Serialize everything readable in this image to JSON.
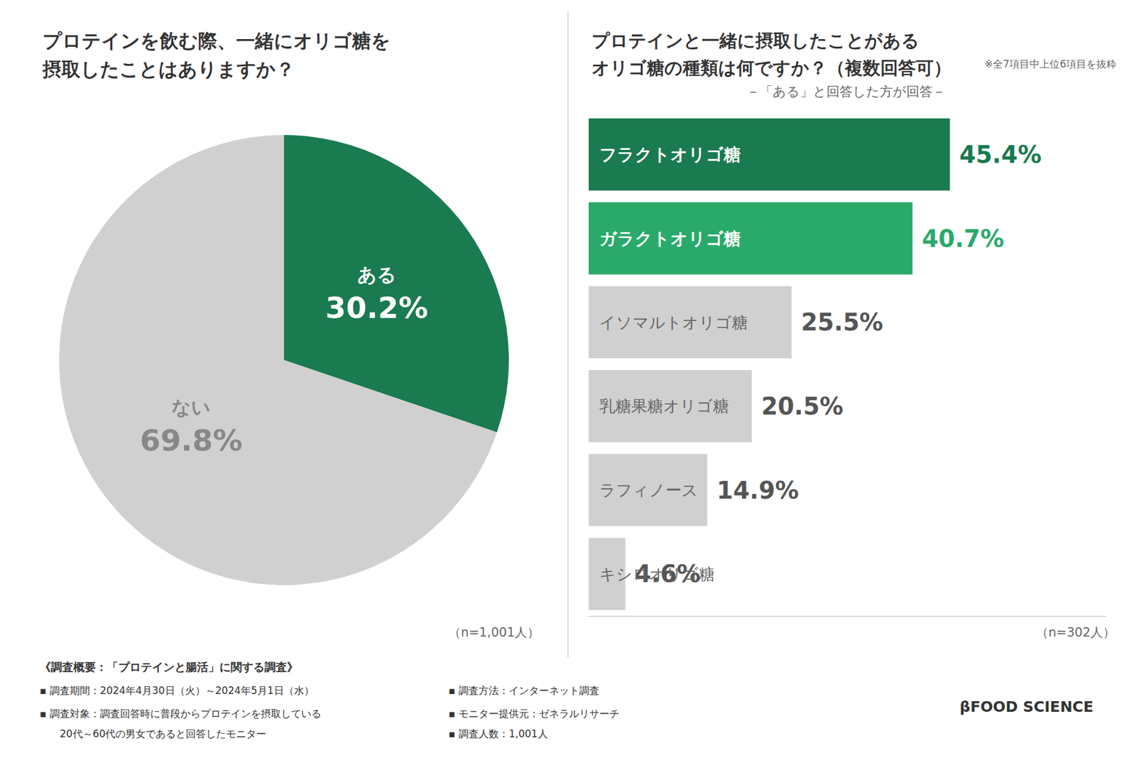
{
  "chart_data": [
    {
      "type": "pie",
      "title": "プロテインを飲む際、一緒にオリゴ糖を\n摂取したことはありますか？",
      "categories": [
        "ある",
        "ない"
      ],
      "values": [
        30.2,
        69.8
      ],
      "value_labels": [
        "30.2%",
        "69.8%"
      ],
      "colors": [
        "#1a7a50",
        "#d0d0d0"
      ],
      "data_labels": true,
      "annotations": [
        "（n=1,001人）"
      ],
      "footnotes": [
        "《調査概要：「プロテインと腸活」に関する調査》",
        "▪ 調査期間：2024年4月30日（火）～2024年5月1日（水）",
        "▪ 調査対象：調査回答時に普段からプロテインを摂取している",
        "　　20代～60代の男女であると回答したモニター",
        "▪ 調査方法：インターネット調査",
        "▪ モニター提供元：ゼネラルリサーチ",
        "▪ 調査人数：1,001人"
      ]
    },
    {
      "type": "bar",
      "orientation": "horizontal",
      "title": "プロテインと一緒に摂取したことがある\nオリゴ糖の種類は何ですか？（複数回答可）",
      "subtitle": "－「ある」と回答した方が回答－",
      "annotations": [
        "※全7項目中上位6項目を抜粋",
        "（n=302人）"
      ],
      "categories": [
        "フラクトオリゴ糖",
        "ガラクトオリゴ糖",
        "イソマルトオリゴ糖",
        "乳糖果糖オリゴ糖",
        "ラフィノース",
        "キシロオリゴ糖"
      ],
      "values": [
        45.4,
        40.7,
        25.5,
        20.5,
        14.9,
        4.6
      ],
      "value_labels": [
        "45.4%",
        "40.7%",
        "25.5%",
        "20.5%",
        "14.9%",
        "4.6%"
      ],
      "colors": [
        "#1a7a50",
        "#2aaa6a",
        "#d0d0d0",
        "#d0d0d0",
        "#d0d0d0",
        "#d0d0d0"
      ],
      "data_labels": true,
      "xlim": [
        0,
        65
      ],
      "grid": false,
      "tick_labels": "y",
      "footnotes": [
        "βFOOD SCIENCE"
      ]
    }
  ]
}
